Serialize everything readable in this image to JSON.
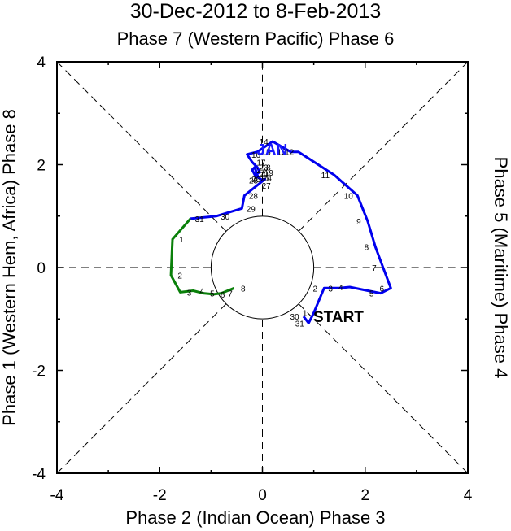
{
  "chart_data": {
    "type": "line",
    "title": "30-Dec-2012 to 8-Feb-2013",
    "subtitle": "Phase 7 (Western Pacific) Phase 6",
    "xlabel": "Phase 2 (Indian Ocean) Phase 3",
    "ylabel_left": "Phase 1 (Western Hem, Africa) Phase 8",
    "ylabel_right": "Phase 5 (Maritime) Phase 4",
    "xlim": [
      -4,
      4
    ],
    "ylim": [
      -4,
      4
    ],
    "xticks": [
      "-4",
      "-2",
      "0",
      "2",
      "4"
    ],
    "yticks": [
      "-4",
      "-2",
      "0",
      "2",
      "4"
    ],
    "unit_circle_radius": 1,
    "grid": "dashed phase-division lines",
    "annotations": [
      {
        "text": "START",
        "x": 0.8,
        "y": -0.95,
        "color": "#000000"
      },
      {
        "text": "JAN",
        "x": -0.05,
        "y": 2.3,
        "color": "#1a1aff"
      }
    ],
    "series": [
      {
        "color": "#0000ee",
        "points": [
          {
            "x": 0.8,
            "y": -0.95,
            "label": "30"
          },
          {
            "x": 0.9,
            "y": -1.08,
            "label": "31"
          },
          {
            "x": 1.0,
            "y": -0.88,
            "label": "1"
          },
          {
            "x": 1.2,
            "y": -0.4,
            "label": "2"
          },
          {
            "x": 1.5,
            "y": -0.4,
            "label": "3"
          },
          {
            "x": 1.7,
            "y": -0.38,
            "label": "4"
          },
          {
            "x": 2.3,
            "y": -0.5,
            "label": "5"
          },
          {
            "x": 2.5,
            "y": -0.4,
            "label": "6"
          },
          {
            "x": 2.35,
            "y": 0.0,
            "label": "7"
          },
          {
            "x": 2.2,
            "y": 0.4,
            "label": "8"
          },
          {
            "x": 2.05,
            "y": 0.9,
            "label": "9"
          },
          {
            "x": 1.85,
            "y": 1.4,
            "label": "10"
          },
          {
            "x": 1.4,
            "y": 1.8,
            "label": "11"
          },
          {
            "x": 0.7,
            "y": 2.25,
            "label": "12"
          },
          {
            "x": 0.55,
            "y": 2.25,
            "label": "13"
          },
          {
            "x": 0.2,
            "y": 2.45,
            "label": "14"
          },
          {
            "x": -0.1,
            "y": 2.25,
            "label": "15"
          },
          {
            "x": -0.3,
            "y": 2.2,
            "label": "16"
          },
          {
            "x": -0.2,
            "y": 2.05,
            "label": "17"
          },
          {
            "x": -0.1,
            "y": 1.95,
            "label": "18"
          },
          {
            "x": -0.05,
            "y": 1.85,
            "label": "19"
          },
          {
            "x": -0.15,
            "y": 1.82,
            "label": "20"
          },
          {
            "x": -0.12,
            "y": 1.75,
            "label": "21"
          },
          {
            "x": -0.2,
            "y": 1.9,
            "label": "22"
          },
          {
            "x": -0.15,
            "y": 1.95,
            "label": "23"
          },
          {
            "x": -0.08,
            "y": 1.75,
            "label": "24"
          },
          {
            "x": 0.0,
            "y": 1.7,
            "label": "25"
          },
          {
            "x": 0.05,
            "y": 1.72,
            "label": "26"
          },
          {
            "x": -0.1,
            "y": 1.6,
            "label": "27"
          },
          {
            "x": -0.35,
            "y": 1.4,
            "label": "28"
          },
          {
            "x": -0.4,
            "y": 1.15,
            "label": "29"
          },
          {
            "x": -0.9,
            "y": 1.0,
            "label": "30"
          },
          {
            "x": -1.4,
            "y": 0.95,
            "label": "31"
          }
        ]
      },
      {
        "color": "#0a800a",
        "points": [
          {
            "x": -1.4,
            "y": 0.95,
            "label": ""
          },
          {
            "x": -1.75,
            "y": 0.55,
            "label": "1"
          },
          {
            "x": -1.78,
            "y": -0.15,
            "label": "2"
          },
          {
            "x": -1.6,
            "y": -0.48,
            "label": "3"
          },
          {
            "x": -1.35,
            "y": -0.45,
            "label": "4"
          },
          {
            "x": -1.15,
            "y": -0.5,
            "label": "5"
          },
          {
            "x": -0.95,
            "y": -0.52,
            "label": "6"
          },
          {
            "x": -0.8,
            "y": -0.5,
            "label": "7"
          },
          {
            "x": -0.55,
            "y": -0.4,
            "label": "8"
          }
        ]
      }
    ]
  }
}
